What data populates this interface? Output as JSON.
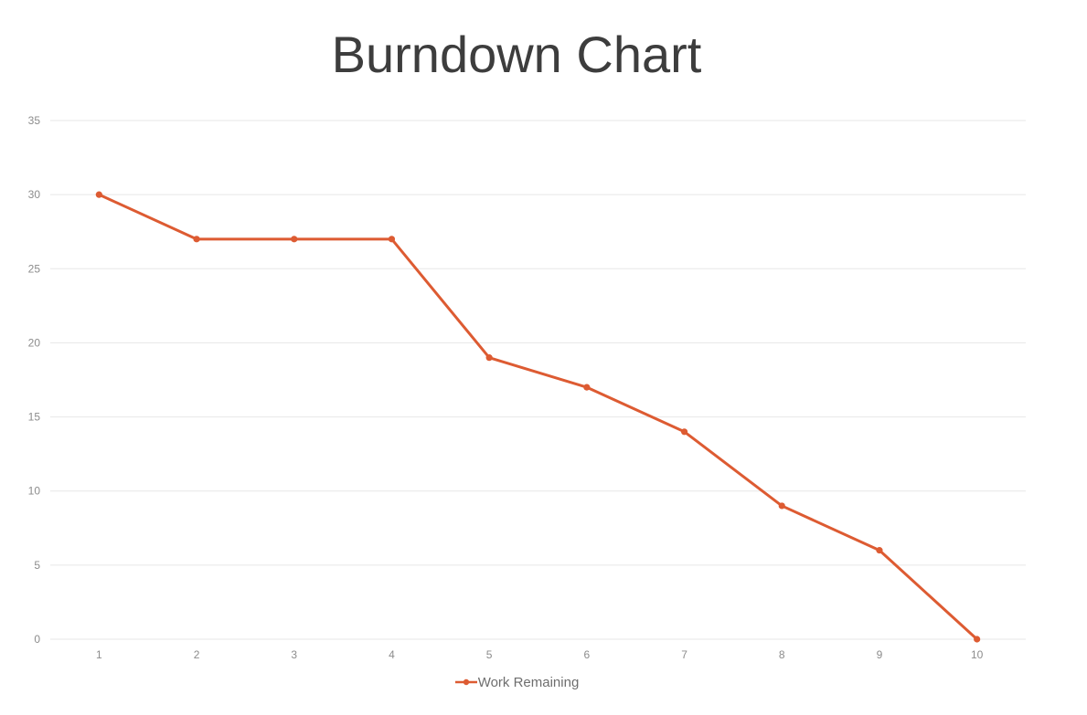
{
  "title": "Burndown Chart",
  "chart_data": {
    "type": "line",
    "title": "Burndown Chart",
    "x": [
      1,
      2,
      3,
      4,
      5,
      6,
      7,
      8,
      9,
      10
    ],
    "series": [
      {
        "name": "Work Remaining",
        "values": [
          30,
          27,
          27,
          27,
          19,
          17,
          14,
          9,
          6,
          0
        ]
      }
    ],
    "xlabel": "",
    "ylabel": "",
    "ylim": [
      0,
      35
    ],
    "yticks": [
      0,
      5,
      10,
      15,
      20,
      25,
      30,
      35
    ],
    "grid": "horizontal",
    "legend_position": "bottom",
    "colors": {
      "line": "#dd5b32",
      "marker": "#dd5b32",
      "gridline": "#e7e7e7",
      "tick_label": "#8c8c8c",
      "title": "#3d3d3d",
      "legend_text": "#6e6e6e",
      "background": "#ffffff"
    }
  },
  "legend": {
    "items": [
      {
        "label": "Work Remaining",
        "color": "#dd5b32"
      }
    ]
  }
}
